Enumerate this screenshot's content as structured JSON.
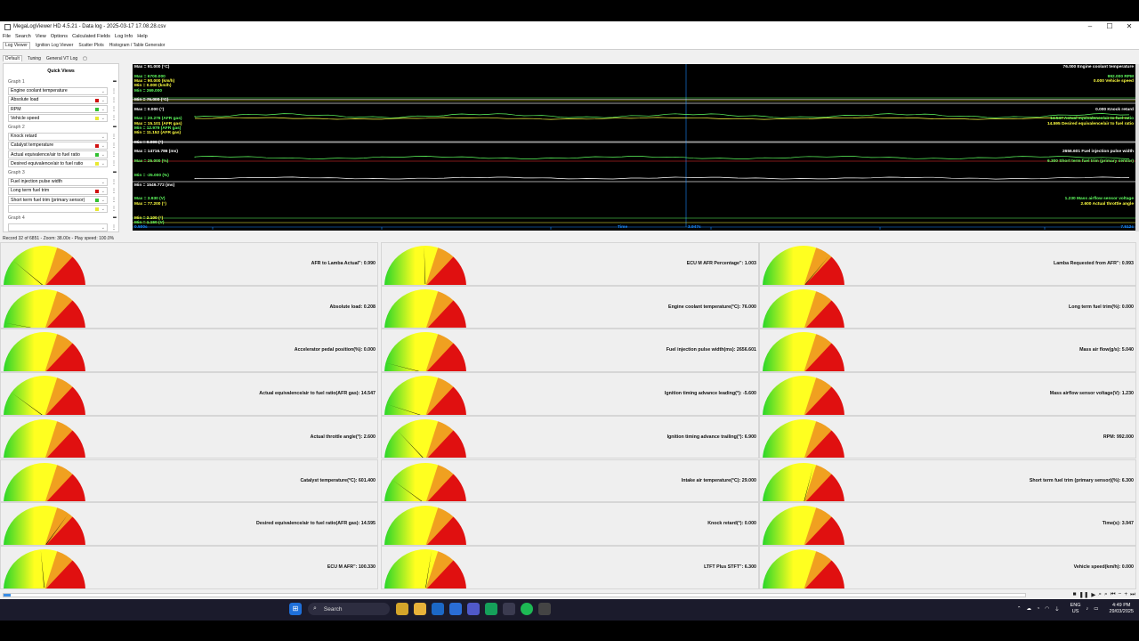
{
  "window": {
    "title": "MegaLogViewer HD 4.5.21 - Data log - 2025-03-17 17.08.28.csv",
    "controls": [
      "–",
      "☐",
      "✕"
    ]
  },
  "menu": [
    "File",
    "Search",
    "View",
    "Options",
    "Calculated Fields",
    "Log Info",
    "Help"
  ],
  "view_tabs": [
    "Log Viewer",
    "Ignition Log Viewer",
    "Scatter Plots",
    "Histogram / Table Generator"
  ],
  "sub_tabs": [
    "Default",
    "Tuning",
    "General VT Log"
  ],
  "quick_views": {
    "title": "Quick Views",
    "rows": [
      {
        "type": "group",
        "label": "Graph 1"
      },
      {
        "type": "field",
        "label": "Engine coolant temperature",
        "color": ""
      },
      {
        "type": "field",
        "label": "Absolute load",
        "color": "#d01010"
      },
      {
        "type": "field",
        "label": "RPM",
        "color": "#30c030"
      },
      {
        "type": "field",
        "label": "Vehicle speed",
        "color": "#e8e830"
      },
      {
        "type": "group",
        "label": "Graph 2"
      },
      {
        "type": "field",
        "label": "Knock retard",
        "color": ""
      },
      {
        "type": "field",
        "label": "Catalyst temperature",
        "color": "#d01010"
      },
      {
        "type": "field",
        "label": "Actual equivalence/air to fuel ratio",
        "color": "#30c030"
      },
      {
        "type": "field",
        "label": "Desired equivalence/air to fuel ratio",
        "color": "#e8e830"
      },
      {
        "type": "group",
        "label": "Graph 3"
      },
      {
        "type": "field",
        "label": "Fuel injection pulse width",
        "color": ""
      },
      {
        "type": "field",
        "label": "Long term fuel trim",
        "color": "#d01010"
      },
      {
        "type": "field",
        "label": "Short term fuel trim (primary sensor)",
        "color": "#30c030"
      },
      {
        "type": "field",
        "label": "",
        "color": "#e8e830"
      },
      {
        "type": "group",
        "label": "Graph 4"
      },
      {
        "type": "field",
        "label": "",
        "color": ""
      }
    ]
  },
  "chart_labels": [
    {
      "text": "Max = 91.000 (°C)",
      "color": "#ffffff",
      "side": "left",
      "row": 0
    },
    {
      "text": "Max = 6700.000",
      "color": "#60ff60",
      "side": "left",
      "row": 2
    },
    {
      "text": "Max = 90.000 (km/h)",
      "color": "#ffff40",
      "side": "left",
      "row": 3
    },
    {
      "text": "Min = 0.000 (km/h)",
      "color": "#ffff40",
      "side": "left",
      "row": 4
    },
    {
      "text": "Min = 269.000",
      "color": "#60ff60",
      "side": "left",
      "row": 5
    },
    {
      "text": "Min = 76.000 (°C)",
      "color": "#ffffff",
      "side": "left",
      "row": 7
    },
    {
      "text": "Max = 0.000 (°)",
      "color": "#ffffff",
      "side": "left",
      "row": 9
    },
    {
      "text": "Max = 20.276 (AFR gas)",
      "color": "#60ff60",
      "side": "left",
      "row": 11
    },
    {
      "text": "Max = 15.101 (AFR gas)",
      "color": "#ffff40",
      "side": "left",
      "row": 12
    },
    {
      "text": "Min = 12.979 (AFR gas)",
      "color": "#60ff60",
      "side": "left",
      "row": 13
    },
    {
      "text": "Min = 11.152 (AFR gas)",
      "color": "#ffff40",
      "side": "left",
      "row": 14
    },
    {
      "text": "Min = 0.000 (°)",
      "color": "#ffffff",
      "side": "left",
      "row": 16
    },
    {
      "text": "Max = 14716.786 (ms)",
      "color": "#ffffff",
      "side": "left",
      "row": 18
    },
    {
      "text": "Max = 25.000 (%)",
      "color": "#60ff60",
      "side": "left",
      "row": 20
    },
    {
      "text": "Min = -25.000 (%)",
      "color": "#60ff60",
      "side": "left",
      "row": 23
    },
    {
      "text": "Min = 1549.772 (ms)",
      "color": "#ffffff",
      "side": "left",
      "row": 25
    },
    {
      "text": "Max = 3.930 (V)",
      "color": "#60ff60",
      "side": "left",
      "row": 28
    },
    {
      "text": "Max = 77.200 (°)",
      "color": "#ffff40",
      "side": "left",
      "row": 29
    },
    {
      "text": "Min = 2.100 (°)",
      "color": "#ffff40",
      "side": "left",
      "row": 32
    },
    {
      "text": "Min = 1.150 (V)",
      "color": "#60ff60",
      "side": "left",
      "row": 33
    },
    {
      "text": "76.000   Engine coolant temperature",
      "color": "#ffffff",
      "side": "right",
      "row": 0
    },
    {
      "text": "992.000  RPM",
      "color": "#60ff60",
      "side": "right",
      "row": 2
    },
    {
      "text": "0.000   Vehicle speed",
      "color": "#ffff40",
      "side": "right",
      "row": 3
    },
    {
      "text": "0.000   Knock retard",
      "color": "#ffffff",
      "side": "right",
      "row": 9
    },
    {
      "text": "14.547  Actual equivalence/air to fuel ratio",
      "color": "#60ff60",
      "side": "right",
      "row": 11
    },
    {
      "text": "14.595  Desired equivalence/air to fuel ratio",
      "color": "#ffff40",
      "side": "right",
      "row": 12
    },
    {
      "text": "2656.601  Fuel injection pulse width",
      "color": "#ffffff",
      "side": "right",
      "row": 18
    },
    {
      "text": "6.300   Short term fuel trim (primary sensor)",
      "color": "#60ff60",
      "side": "right",
      "row": 20
    },
    {
      "text": "1.230   Mass airflow sensor voltage",
      "color": "#60ff60",
      "side": "right",
      "row": 28
    },
    {
      "text": "2.600   Actual throttle angle",
      "color": "#ffff40",
      "side": "right",
      "row": 29
    }
  ],
  "time_axis": {
    "start": "0.500s",
    "label": "Time",
    "cursor": "3.947s",
    "end": "7.512s"
  },
  "status": "Record 32 of 6851 - Zoom: 38.00x - Play speed: 100.0%",
  "gauges": [
    {
      "label": "AFR to Lamba Actual\": 0.990",
      "level": 0.22
    },
    {
      "label": "ECU M AFR Percentage\": 1.003",
      "level": 0.49
    },
    {
      "label": "Lamba Requested from AFR\": 0.993",
      "level": 0.72
    },
    {
      "label": "Absolute load: 0.208",
      "level": 0.06
    },
    {
      "label": "Engine coolant temperature(°C): 76.000",
      "level": 0.0
    },
    {
      "label": "Long term fuel trim(%): 0.000",
      "level": 0.0
    },
    {
      "label": "Accelerator pedal position(%): 0.000",
      "level": 0.0
    },
    {
      "label": "Fuel injection pulse width(ms): 2656.601",
      "level": 0.08
    },
    {
      "label": "Mass air flow(g/s): 5.040",
      "level": 0.0
    },
    {
      "label": "Actual equivalence/air to fuel ratio(AFR gas): 14.547",
      "level": 0.2
    },
    {
      "label": "Ignition timing advance  leading(°): -5.600",
      "level": 0.1
    },
    {
      "label": "Mass airflow sensor voltage(V): 1.230",
      "level": 0.0
    },
    {
      "label": "Actual throttle angle(°): 2.600",
      "level": 0.0
    },
    {
      "label": "Ignition timing advance  trailing(°): 6.900",
      "level": 0.26
    },
    {
      "label": "RPM: 992.000",
      "level": 0.02
    },
    {
      "label": "Catalyst temperature(°C): 601.400",
      "level": 0.0
    },
    {
      "label": "Intake air temperature(°C): 29.000",
      "level": 0.2
    },
    {
      "label": "Short term fuel trim (primary sensor)(%): 6.300",
      "level": 0.58
    },
    {
      "label": "Desired equivalence/air to fuel ratio(AFR gas): 14.595",
      "level": 0.7
    },
    {
      "label": "Knock retard(°): 0.000",
      "level": 0.0
    },
    {
      "label": "Time(s): 3.947",
      "level": 0.0
    },
    {
      "label": "ECU M AFR\": 100.330",
      "level": 0.47
    },
    {
      "label": "LTFT Plus STFT\": 6.300",
      "level": 0.55
    },
    {
      "label": "Vehicle speed(km/h): 0.000",
      "level": 0.0
    }
  ],
  "taskbar": {
    "search_placeholder": "Search",
    "lang": "ENG",
    "region": "US",
    "time": "4:49 PM",
    "date": "29/03/2025"
  },
  "colors": {
    "gauge_green": "#29d629",
    "gauge_yellow": "#ffff20",
    "gauge_orange": "#f0a020",
    "gauge_red": "#e01010"
  }
}
